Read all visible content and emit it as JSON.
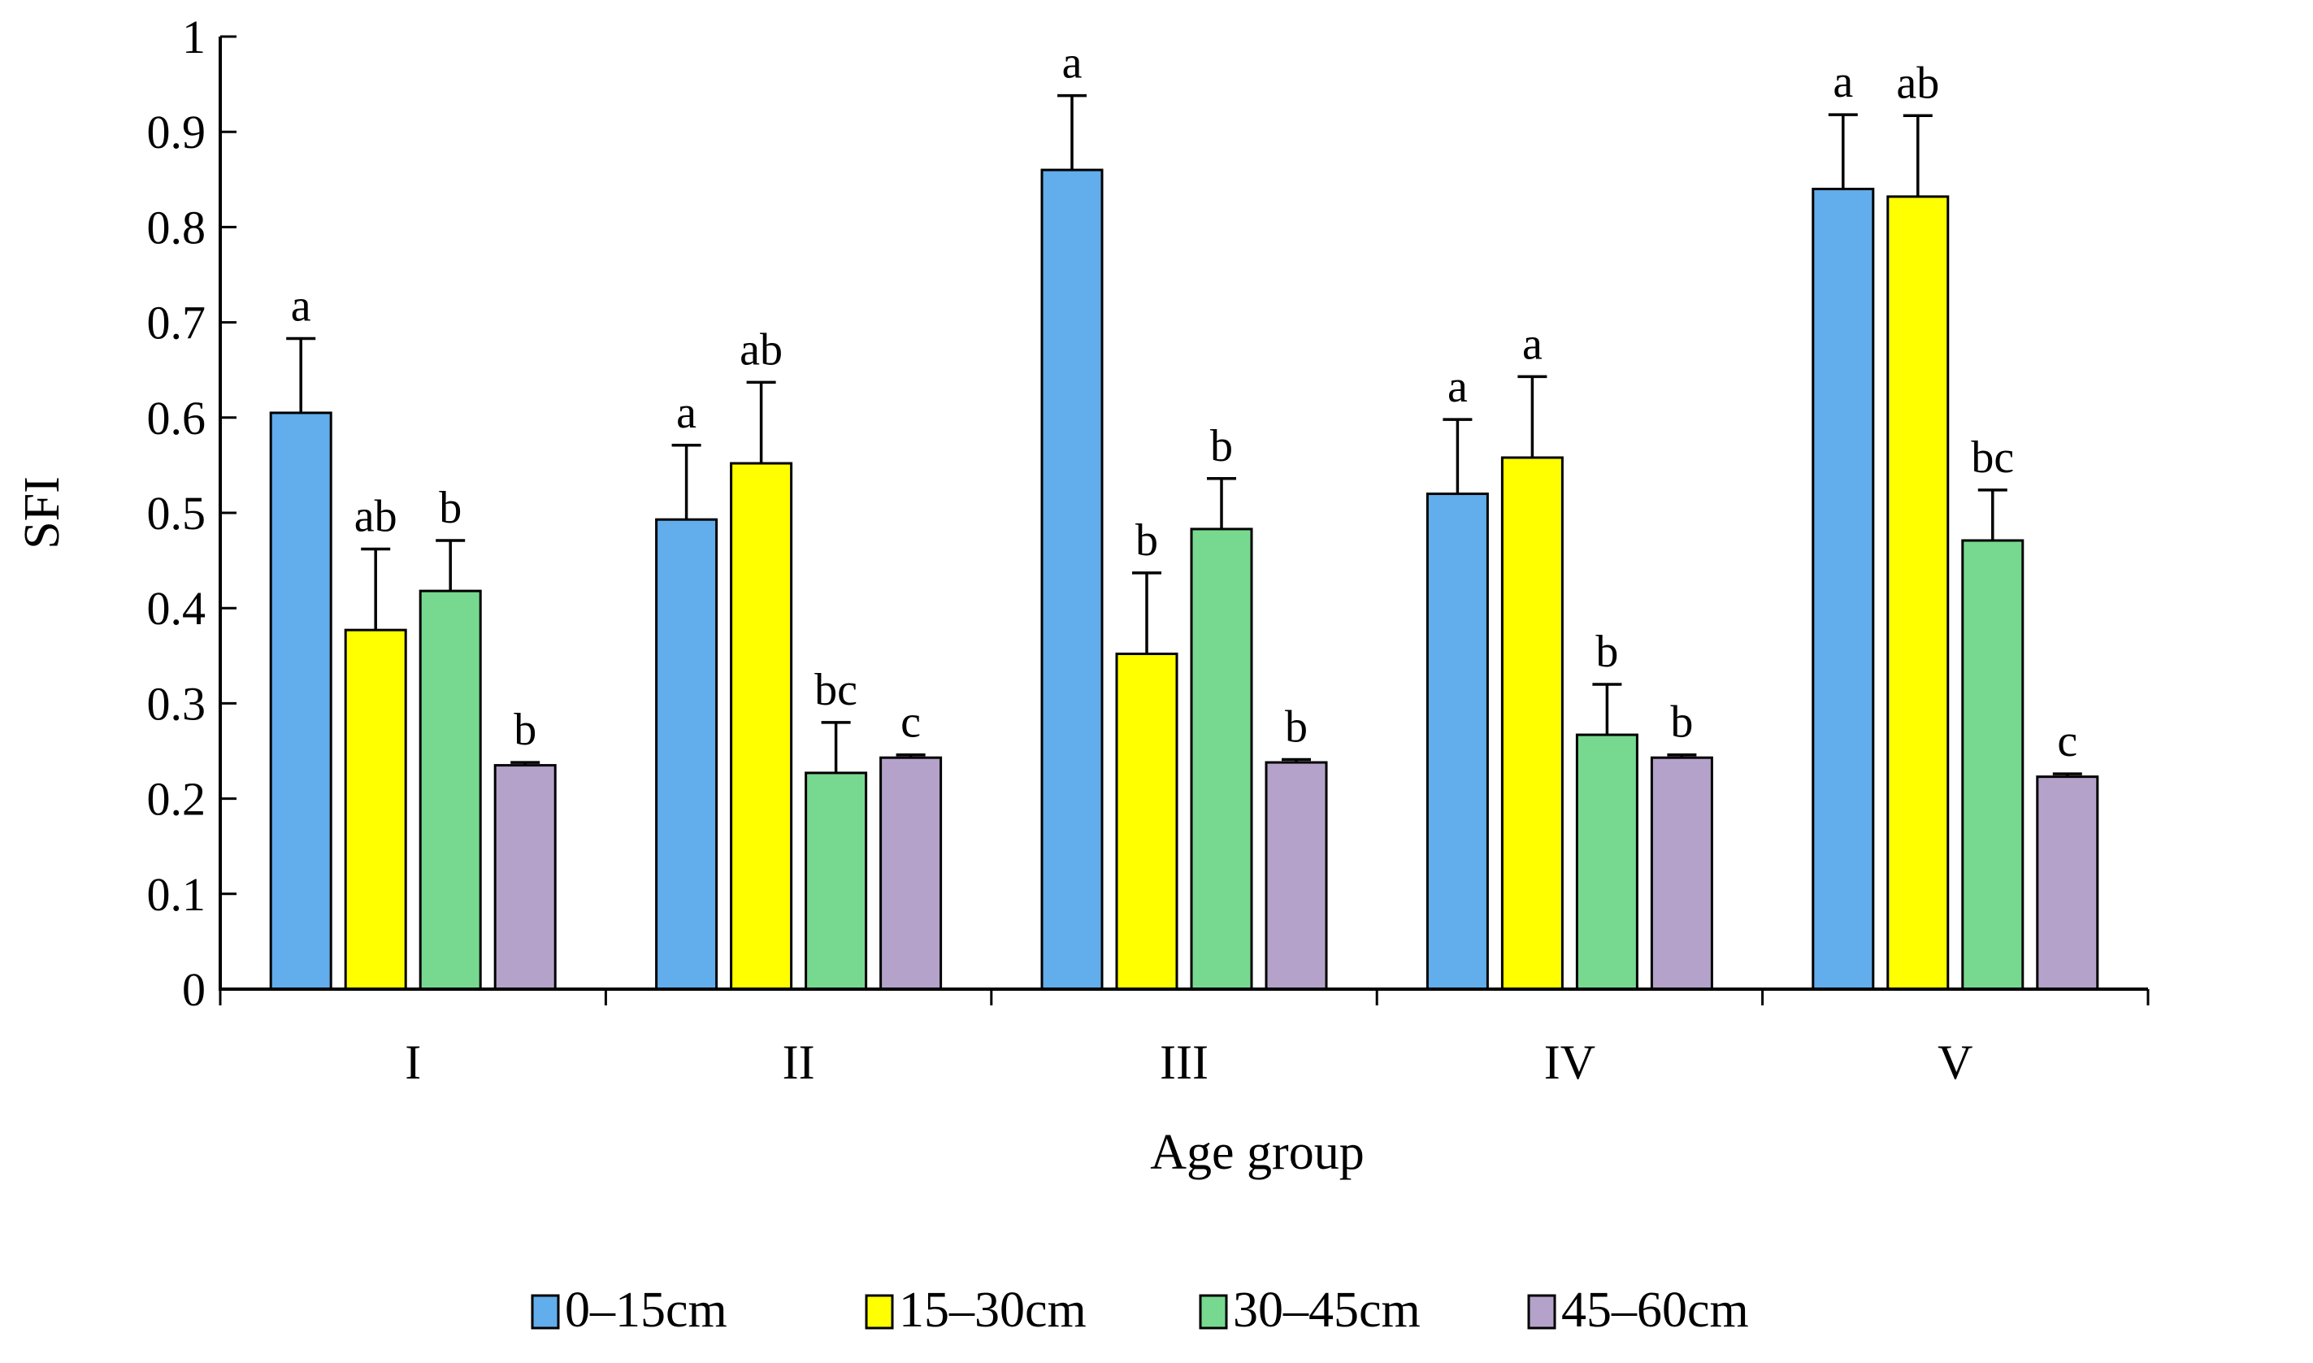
{
  "chart_data": {
    "type": "bar",
    "title": "",
    "xlabel": "Age group",
    "ylabel": "SFI",
    "ylim": [
      0,
      1
    ],
    "yticks": [
      0,
      0.1,
      0.2,
      0.3,
      0.4,
      0.5,
      0.6,
      0.7,
      0.8,
      0.9,
      1
    ],
    "ytick_labels": [
      "0",
      "0.1",
      "0.2",
      "0.3",
      "0.4",
      "0.5",
      "0.6",
      "0.7",
      "0.8",
      "0.9",
      "1"
    ],
    "categories": [
      "I",
      "II",
      "III",
      "IV",
      "V"
    ],
    "legend_position": "bottom",
    "grid": false,
    "series": [
      {
        "name": "0–15cm",
        "color": "#62ADEB",
        "values": [
          0.605,
          0.493,
          0.86,
          0.52,
          0.84
        ],
        "errors": [
          0.078,
          0.078,
          0.078,
          0.078,
          0.078
        ],
        "labels": [
          "a",
          "a",
          "a",
          "a",
          "a"
        ]
      },
      {
        "name": "15–30cm",
        "color": "#FFFF00",
        "values": [
          0.377,
          0.552,
          0.352,
          0.558,
          0.832
        ],
        "errors": [
          0.085,
          0.085,
          0.085,
          0.085,
          0.085
        ],
        "labels": [
          "ab",
          "ab",
          "b",
          "a",
          "ab"
        ]
      },
      {
        "name": "30–45cm",
        "color": "#77D990",
        "values": [
          0.418,
          0.227,
          0.483,
          0.267,
          0.471
        ],
        "errors": [
          0.053,
          0.053,
          0.053,
          0.053,
          0.053
        ],
        "labels": [
          "b",
          "bc",
          "b",
          "b",
          "bc"
        ]
      },
      {
        "name": "45–60cm",
        "color": "#B4A2CA",
        "values": [
          0.235,
          0.243,
          0.238,
          0.243,
          0.223
        ],
        "errors": [
          0.003,
          0.003,
          0.003,
          0.003,
          0.003
        ],
        "labels": [
          "b",
          "c",
          "b",
          "b",
          "c"
        ]
      }
    ]
  }
}
